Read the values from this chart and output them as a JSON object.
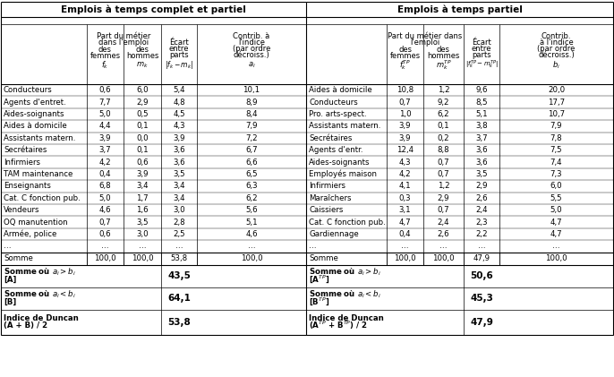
{
  "title_left": "Emplois à temps complet et partiel",
  "title_right": "Emplois à temps partiel",
  "rows_left": [
    [
      "Conducteurs",
      "0,6",
      "6,0",
      "5,4",
      "10,1"
    ],
    [
      "Agents d'entret.",
      "7,7",
      "2,9",
      "4,8",
      "8,9"
    ],
    [
      "Aides-soignants",
      "5,0",
      "0,5",
      "4,5",
      "8,4"
    ],
    [
      "Aides à domicile",
      "4,4",
      "0,1",
      "4,3",
      "7,9"
    ],
    [
      "Assistants matern.",
      "3,9",
      "0,0",
      "3,9",
      "7,2"
    ],
    [
      "Secrétaires",
      "3,7",
      "0,1",
      "3,6",
      "6,7"
    ],
    [
      "Infirmiers",
      "4,2",
      "0,6",
      "3,6",
      "6,6"
    ],
    [
      "TAM maintenance",
      "0,4",
      "3,9",
      "3,5",
      "6,5"
    ],
    [
      "Enseignants",
      "6,8",
      "3,4",
      "3,4",
      "6,3"
    ],
    [
      "Cat. C fonction pub.",
      "5,0",
      "1,7",
      "3,4",
      "6,2"
    ],
    [
      "Vendeurs",
      "4,6",
      "1,6",
      "3,0",
      "5,6"
    ],
    [
      "OQ manutention",
      "0,7",
      "3,5",
      "2,8",
      "5,1"
    ],
    [
      "Armée, police",
      "0,6",
      "3,0",
      "2,5",
      "4,6"
    ],
    [
      "…",
      "…",
      "…",
      "…",
      "…"
    ]
  ],
  "rows_right": [
    [
      "Aides à domicile",
      "10,8",
      "1,2",
      "9,6",
      "20,0"
    ],
    [
      "Conducteurs",
      "0,7",
      "9,2",
      "8,5",
      "17,7"
    ],
    [
      "Pro. arts-spect.",
      "1,0",
      "6,2",
      "5,1",
      "10,7"
    ],
    [
      "Assistants matern.",
      "3,9",
      "0,1",
      "3,8",
      "7,9"
    ],
    [
      "Secrétaires",
      "3,9",
      "0,2",
      "3,7",
      "7,8"
    ],
    [
      "Agents d'entr.",
      "12,4",
      "8,8",
      "3,6",
      "7,5"
    ],
    [
      "Aides-soignants",
      "4,3",
      "0,7",
      "3,6",
      "7,4"
    ],
    [
      "Employés maison",
      "4,2",
      "0,7",
      "3,5",
      "7,3"
    ],
    [
      "Infirmiers",
      "4,1",
      "1,2",
      "2,9",
      "6,0"
    ],
    [
      "Maraîchers",
      "0,3",
      "2,9",
      "2,6",
      "5,5"
    ],
    [
      "Caissiers",
      "3,1",
      "0,7",
      "2,4",
      "5,0"
    ],
    [
      "Cat. C fonction pub.",
      "4,7",
      "2,4",
      "2,3",
      "4,7"
    ],
    [
      "Gardiennage",
      "0,4",
      "2,6",
      "2,2",
      "4,7"
    ],
    [
      "…",
      "…",
      "…",
      "…",
      "…"
    ]
  ],
  "somme_left": [
    "Somme",
    "100,0",
    "100,0",
    "53,8",
    "100,0"
  ],
  "somme_right": [
    "Somme",
    "100,0",
    "100,0",
    "47,9",
    "100,0"
  ],
  "summary_left_labels": [
    "Somme où $a_i > b_i$\n[A]",
    "Somme où $a_i < b_i$\n[B]",
    "Indice de Duncan\n(A + B) / 2"
  ],
  "summary_left_vals": [
    "43,5",
    "64,1",
    "53,8"
  ],
  "summary_right_labels": [
    "Somme où $a_i > b_i$\n[A$^{TP}$]",
    "Somme où $a_i < b_i$\n[B$^{TP}$]",
    "Indice de Duncan\n(A$^{TP}$ + B$^{TP}$) / 2"
  ],
  "summary_right_vals": [
    "50,6",
    "45,3",
    "47,9"
  ],
  "bg_color": "#ffffff",
  "text_color": "#000000"
}
